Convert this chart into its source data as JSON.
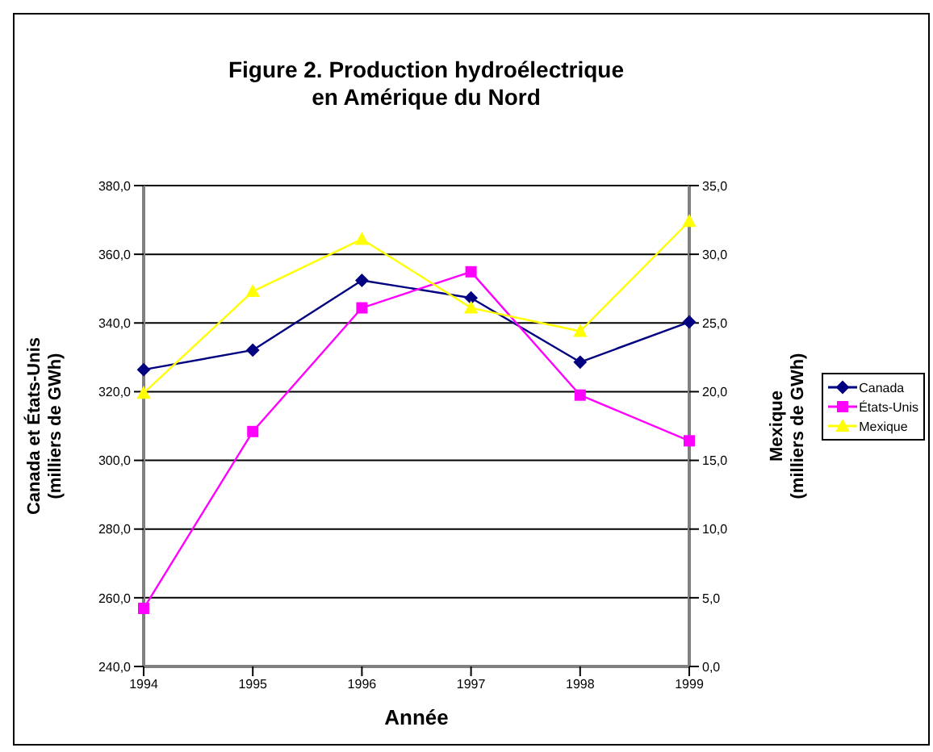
{
  "chart_data": {
    "type": "line",
    "title": "Figure 2. Production hydroélectrique\nen Amérique du Nord",
    "xlabel": "Année",
    "ylabel": "Canada et États-Unis\n(milliers de GWh)",
    "y2label": "Mexique\n(milliers de GWh)",
    "categories": [
      "1994",
      "1995",
      "1996",
      "1997",
      "1998",
      "1999"
    ],
    "series": [
      {
        "name": "Canada",
        "color": "#000080",
        "marker": "diamond",
        "values": [
          326.4,
          332.1,
          352.4,
          347.3,
          328.6,
          340.3
        ]
      },
      {
        "name": "États-Unis",
        "color": "#ff00ff",
        "marker": "square",
        "values": [
          256.9,
          308.4,
          344.4,
          354.9,
          319.0,
          305.7
        ]
      },
      {
        "name": "Mexique",
        "color": "#ffff00",
        "marker": "triangle",
        "axis": "y2",
        "values": [
          19.9,
          27.3,
          31.1,
          26.1,
          24.4,
          32.4
        ]
      }
    ],
    "ylim": [
      240,
      380
    ],
    "yticks": [
      {
        "value": 240,
        "label": "240,0"
      },
      {
        "value": 260,
        "label": "260,0"
      },
      {
        "value": 280,
        "label": "280,0"
      },
      {
        "value": 300,
        "label": "300,0"
      },
      {
        "value": 320,
        "label": "320,0"
      },
      {
        "value": 340,
        "label": "340,0"
      },
      {
        "value": 360,
        "label": "360,0"
      },
      {
        "value": 380,
        "label": "380,0"
      }
    ],
    "y2lim": [
      0,
      35
    ],
    "y2ticks": [
      {
        "value": 0,
        "label": "0,0"
      },
      {
        "value": 5,
        "label": "5,0"
      },
      {
        "value": 10,
        "label": "10,0"
      },
      {
        "value": 15,
        "label": "15,0"
      },
      {
        "value": 20,
        "label": "20,0"
      },
      {
        "value": 25,
        "label": "25,0"
      },
      {
        "value": 30,
        "label": "30,0"
      },
      {
        "value": 35,
        "label": "35,0"
      }
    ],
    "grid": "y",
    "legend": "right",
    "line_style": "solid"
  }
}
